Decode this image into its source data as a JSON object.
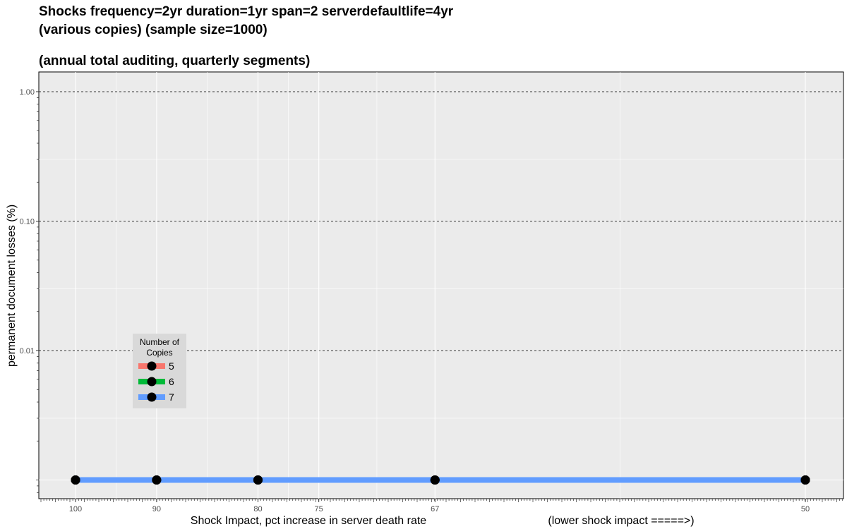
{
  "title": {
    "line1": "Shocks frequency=2yr duration=1yr span=2 serverdefaultlife=4yr",
    "line2": "(various copies) (sample size=1000)",
    "line3": "(annual total auditing, quarterly segments)"
  },
  "chart_data": {
    "type": "line",
    "title": "Shocks frequency=2yr duration=1yr span=2 serverdefaultlife=4yr (various copies) (sample size=1000) (annual total auditing, quarterly segments)",
    "xlabel": "Shock Impact, pct increase in server death rate",
    "xlabel_note": "(lower shock impact =====>)",
    "ylabel": "permanent document losses (%)",
    "x_scale": "reciprocal",
    "x_tick_labels": [
      "100",
      "90",
      "80",
      "75",
      "67",
      "50"
    ],
    "x_ticks": [
      100,
      90,
      80,
      75,
      67,
      50
    ],
    "y_scale": "log",
    "y_tick_labels": [
      "1.00",
      "0.10",
      "0.01"
    ],
    "y_ticks": [
      1.0,
      0.1,
      0.01
    ],
    "ylim": [
      0.0008,
      1.5
    ],
    "grid": true,
    "x": [
      100,
      90,
      80,
      67,
      50
    ],
    "series": [
      {
        "name": "5",
        "color": "#F8766D",
        "values": [
          0.001,
          0.001,
          0.001,
          0.001,
          0.001
        ]
      },
      {
        "name": "6",
        "color": "#00BA38",
        "values": [
          0.001,
          0.001,
          0.001,
          0.001,
          0.001
        ]
      },
      {
        "name": "7",
        "color": "#619CFF",
        "values": [
          0.001,
          0.001,
          0.001,
          0.001,
          0.001
        ]
      }
    ],
    "legend": {
      "title_line1": "Number of",
      "title_line2": "Copies",
      "placement": "inside-left"
    }
  }
}
